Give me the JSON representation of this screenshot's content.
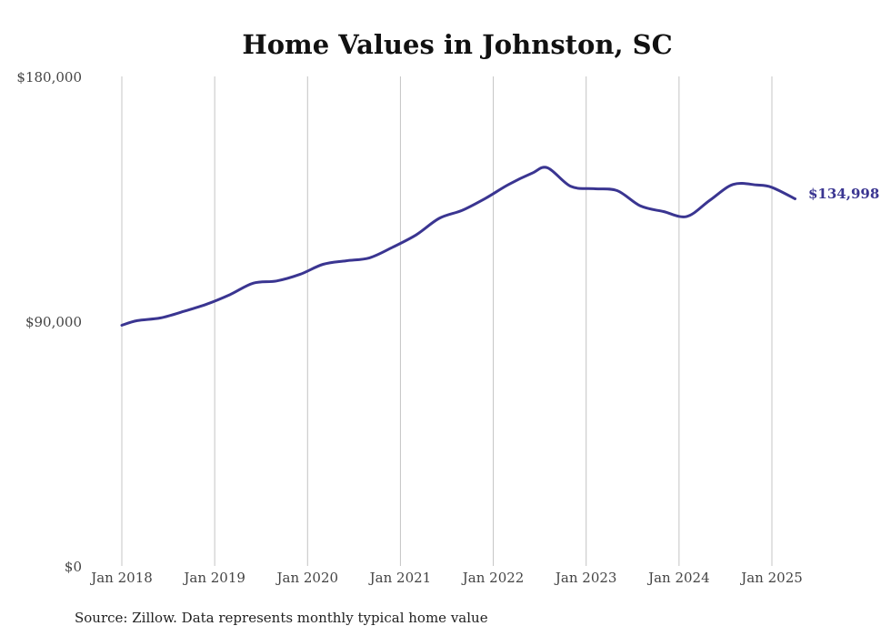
{
  "chart_data": {
    "type": "line",
    "title": "Home Values in Johnston, SC",
    "source": "Source: Zillow. Data represents monthly typical home value",
    "ylim": [
      0,
      180000
    ],
    "ytick_values": [
      0,
      90000,
      180000
    ],
    "ytick_labels": [
      "$0",
      "$90,000",
      "$180,000"
    ],
    "x_ticks": [
      "2018-01",
      "2019-01",
      "2020-01",
      "2021-01",
      "2022-01",
      "2023-01",
      "2024-01",
      "2025-01"
    ],
    "xtick_labels": [
      "Jan 2018",
      "Jan 2019",
      "Jan 2020",
      "Jan 2021",
      "Jan 2022",
      "Jan 2023",
      "Jan 2024",
      "Jan 2025"
    ],
    "grid_x": true,
    "line_color": "#3a3591",
    "end_label": "$134,998",
    "series": [
      {
        "values": [
          {
            "x": "2018-01",
            "y": 88500
          },
          {
            "x": "2018-03",
            "y": 90200
          },
          {
            "x": "2018-06",
            "y": 91200
          },
          {
            "x": "2018-09",
            "y": 93600
          },
          {
            "x": "2018-12",
            "y": 96300
          },
          {
            "x": "2019-03",
            "y": 99800
          },
          {
            "x": "2019-06",
            "y": 104000
          },
          {
            "x": "2019-09",
            "y": 104800
          },
          {
            "x": "2019-12",
            "y": 107200
          },
          {
            "x": "2020-03",
            "y": 110900
          },
          {
            "x": "2020-06",
            "y": 112200
          },
          {
            "x": "2020-09",
            "y": 113300
          },
          {
            "x": "2020-12",
            "y": 117200
          },
          {
            "x": "2021-03",
            "y": 121700
          },
          {
            "x": "2021-06",
            "y": 127800
          },
          {
            "x": "2021-09",
            "y": 130800
          },
          {
            "x": "2021-12",
            "y": 135200
          },
          {
            "x": "2022-03",
            "y": 140300
          },
          {
            "x": "2022-06",
            "y": 144400
          },
          {
            "x": "2022-08",
            "y": 146400
          },
          {
            "x": "2022-11",
            "y": 139600
          },
          {
            "x": "2023-02",
            "y": 138700
          },
          {
            "x": "2023-05",
            "y": 138000
          },
          {
            "x": "2023-08",
            "y": 132400
          },
          {
            "x": "2023-11",
            "y": 130300
          },
          {
            "x": "2024-02",
            "y": 128500
          },
          {
            "x": "2024-05",
            "y": 134500
          },
          {
            "x": "2024-08",
            "y": 140300
          },
          {
            "x": "2024-11",
            "y": 140100
          },
          {
            "x": "2025-01",
            "y": 139200
          },
          {
            "x": "2025-04",
            "y": 134998
          }
        ]
      }
    ]
  }
}
